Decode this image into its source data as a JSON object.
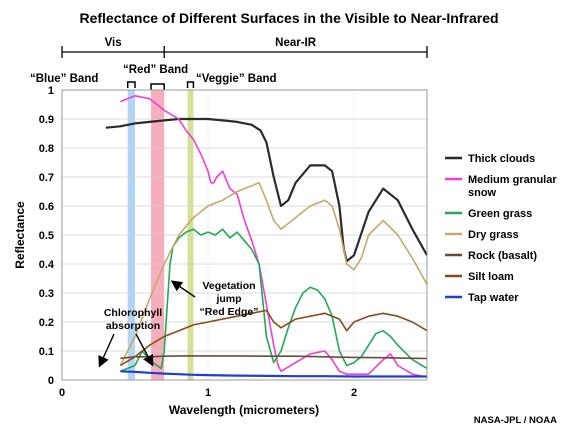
{
  "chart_data": {
    "type": "line",
    "title": "Reflectance of Different Surfaces in the Visible to Near-Infrared",
    "xlabel": "Wavelength (micrometers)",
    "ylabel": "Reflectance",
    "xlim": [
      0,
      2.5
    ],
    "ylim": [
      0,
      1
    ],
    "x_ticks": [
      "0",
      "1",
      "2"
    ],
    "y_ticks": [
      "0",
      "0.1",
      "0.2",
      "0.3",
      "0.4",
      "0.5",
      "0.6",
      "0.7",
      "0.8",
      "0.9",
      "1"
    ],
    "regions": [
      "Vis",
      "Near-IR"
    ],
    "bands": [
      {
        "name": "“Blue” Band",
        "x_range": [
          0.45,
          0.5
        ],
        "color": "#a8d0f5"
      },
      {
        "name": "“Red” Band",
        "x_range": [
          0.61,
          0.7
        ],
        "color": "#f5a5b5"
      },
      {
        "name": "“Veggie” Band",
        "x_range": [
          0.86,
          0.9
        ],
        "color": "#d0de8c"
      }
    ],
    "annotations": [
      "Chlorophyll absorption",
      "Vegetation jump “Red Edge”"
    ],
    "legend_position": "right",
    "grid": true,
    "credit": "NASA-JPL / NOAA",
    "series": [
      {
        "name": "Thick clouds",
        "color": "#2b2b2b",
        "x": [
          0.3,
          0.4,
          0.5,
          0.6,
          0.7,
          0.8,
          0.9,
          1.0,
          1.1,
          1.2,
          1.3,
          1.36,
          1.4,
          1.45,
          1.5,
          1.55,
          1.6,
          1.7,
          1.8,
          1.85,
          1.9,
          1.93,
          1.95,
          2.0,
          2.1,
          2.2,
          2.3,
          2.4,
          2.5
        ],
        "y": [
          0.87,
          0.875,
          0.885,
          0.89,
          0.895,
          0.9,
          0.9,
          0.9,
          0.895,
          0.89,
          0.88,
          0.86,
          0.82,
          0.7,
          0.6,
          0.62,
          0.68,
          0.74,
          0.74,
          0.72,
          0.6,
          0.45,
          0.41,
          0.43,
          0.58,
          0.66,
          0.62,
          0.52,
          0.43
        ]
      },
      {
        "name": "Medium granular snow",
        "color": "#ee3fd6",
        "x": [
          0.4,
          0.5,
          0.6,
          0.65,
          0.7,
          0.8,
          0.85,
          0.9,
          0.95,
          1.0,
          1.02,
          1.04,
          1.06,
          1.1,
          1.15,
          1.2,
          1.25,
          1.3,
          1.35,
          1.4,
          1.45,
          1.48,
          1.5,
          1.6,
          1.7,
          1.8,
          1.85,
          1.9,
          1.95,
          2.0,
          2.1,
          2.2,
          2.25,
          2.3,
          2.4,
          2.5
        ],
        "y": [
          0.96,
          0.98,
          0.97,
          0.95,
          0.93,
          0.9,
          0.86,
          0.83,
          0.78,
          0.72,
          0.68,
          0.68,
          0.7,
          0.72,
          0.66,
          0.64,
          0.55,
          0.48,
          0.4,
          0.26,
          0.12,
          0.05,
          0.03,
          0.06,
          0.09,
          0.1,
          0.07,
          0.03,
          0.02,
          0.02,
          0.02,
          0.07,
          0.09,
          0.05,
          0.02,
          0.01
        ]
      },
      {
        "name": "Green grass",
        "color": "#22aa55",
        "x": [
          0.4,
          0.45,
          0.5,
          0.55,
          0.6,
          0.65,
          0.68,
          0.7,
          0.72,
          0.74,
          0.76,
          0.8,
          0.85,
          0.9,
          0.95,
          1.0,
          1.05,
          1.1,
          1.15,
          1.2,
          1.25,
          1.3,
          1.35,
          1.38,
          1.4,
          1.45,
          1.5,
          1.55,
          1.6,
          1.65,
          1.7,
          1.75,
          1.8,
          1.85,
          1.9,
          1.95,
          2.0,
          2.05,
          2.1,
          2.15,
          2.2,
          2.25,
          2.3,
          2.4,
          2.5
        ],
        "y": [
          0.03,
          0.04,
          0.05,
          0.1,
          0.07,
          0.05,
          0.04,
          0.1,
          0.25,
          0.4,
          0.46,
          0.49,
          0.51,
          0.52,
          0.5,
          0.51,
          0.5,
          0.52,
          0.49,
          0.51,
          0.48,
          0.45,
          0.4,
          0.25,
          0.15,
          0.06,
          0.1,
          0.18,
          0.25,
          0.3,
          0.32,
          0.31,
          0.28,
          0.22,
          0.1,
          0.05,
          0.06,
          0.08,
          0.12,
          0.16,
          0.17,
          0.15,
          0.12,
          0.07,
          0.04
        ]
      },
      {
        "name": "Dry grass",
        "color": "#c9a86a",
        "x": [
          0.4,
          0.5,
          0.6,
          0.7,
          0.8,
          0.9,
          1.0,
          1.1,
          1.2,
          1.3,
          1.35,
          1.4,
          1.45,
          1.5,
          1.6,
          1.7,
          1.8,
          1.85,
          1.9,
          1.95,
          2.0,
          2.05,
          2.1,
          2.2,
          2.3,
          2.4,
          2.5
        ],
        "y": [
          0.05,
          0.15,
          0.28,
          0.4,
          0.5,
          0.56,
          0.6,
          0.62,
          0.65,
          0.67,
          0.68,
          0.62,
          0.55,
          0.52,
          0.56,
          0.6,
          0.62,
          0.6,
          0.52,
          0.4,
          0.38,
          0.42,
          0.5,
          0.55,
          0.5,
          0.42,
          0.33
        ]
      },
      {
        "name": "Rock (basalt)",
        "color": "#6b4a3a",
        "x": [
          0.4,
          0.5,
          0.6,
          0.7,
          0.8,
          0.9,
          1.0,
          1.2,
          1.4,
          1.6,
          1.8,
          2.0,
          2.2,
          2.4,
          2.5
        ],
        "y": [
          0.075,
          0.08,
          0.08,
          0.082,
          0.083,
          0.083,
          0.083,
          0.083,
          0.082,
          0.082,
          0.08,
          0.078,
          0.077,
          0.075,
          0.074
        ]
      },
      {
        "name": "Silt loam",
        "color": "#8b4a1a",
        "x": [
          0.4,
          0.5,
          0.6,
          0.7,
          0.8,
          0.9,
          1.0,
          1.2,
          1.4,
          1.45,
          1.5,
          1.6,
          1.8,
          1.9,
          1.95,
          2.0,
          2.1,
          2.2,
          2.3,
          2.4,
          2.5
        ],
        "y": [
          0.05,
          0.08,
          0.12,
          0.15,
          0.17,
          0.19,
          0.2,
          0.22,
          0.24,
          0.2,
          0.18,
          0.21,
          0.23,
          0.21,
          0.17,
          0.2,
          0.22,
          0.23,
          0.22,
          0.2,
          0.17
        ]
      },
      {
        "name": "Tap water",
        "color": "#1f3fcf",
        "x": [
          0.4,
          0.5,
          0.6,
          0.7,
          0.8,
          0.9,
          1.0,
          1.1,
          1.2,
          1.4,
          1.6,
          1.8,
          2.0,
          2.2,
          2.4,
          2.5
        ],
        "y": [
          0.03,
          0.028,
          0.025,
          0.022,
          0.02,
          0.018,
          0.017,
          0.016,
          0.015,
          0.014,
          0.013,
          0.013,
          0.012,
          0.012,
          0.012,
          0.012
        ]
      }
    ]
  }
}
